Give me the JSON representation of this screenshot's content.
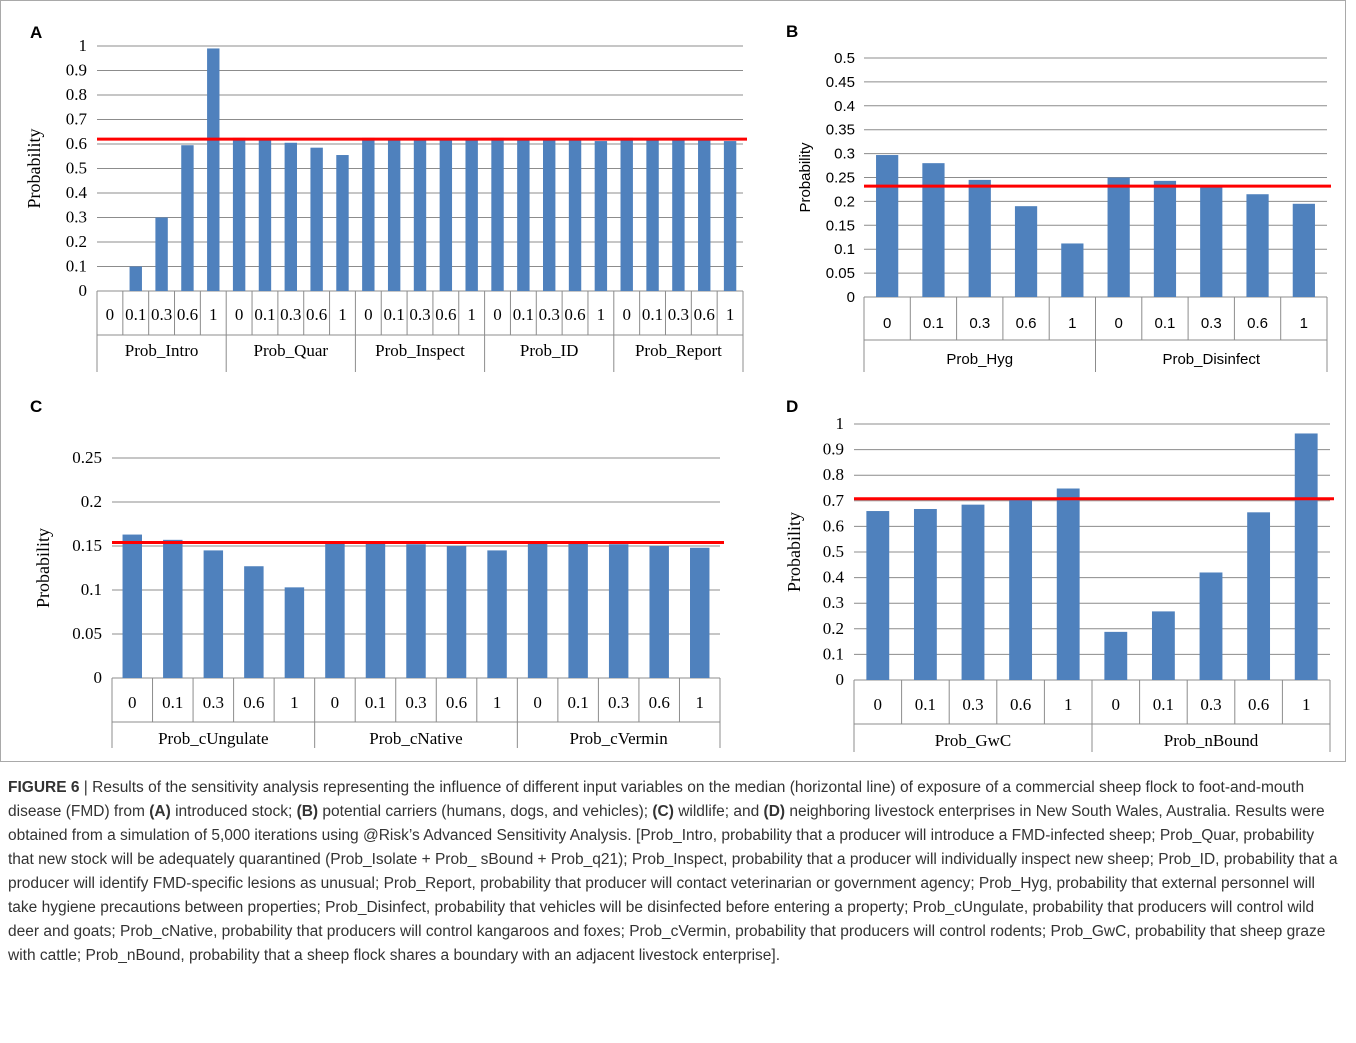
{
  "chart_data": [
    {
      "panel": "A",
      "type": "bar",
      "ylabel": "Probability",
      "ylim": [
        0,
        1
      ],
      "yticks": [
        "0",
        "0.1",
        "0.2",
        "0.3",
        "0.4",
        "0.5",
        "0.6",
        "0.7",
        "0.8",
        "0.9",
        "1"
      ],
      "groups": [
        {
          "name": "Prob_Intro",
          "categories": [
            "0",
            "0.1",
            "0.3",
            "0.6",
            "1"
          ],
          "values": [
            0,
            0.1,
            0.3,
            0.595,
            0.99
          ]
        },
        {
          "name": "Prob_Quar",
          "categories": [
            "0",
            "0.1",
            "0.3",
            "0.6",
            "1"
          ],
          "values": [
            0.625,
            0.615,
            0.605,
            0.585,
            0.555
          ]
        },
        {
          "name": "Prob_Inspect",
          "categories": [
            "0",
            "0.1",
            "0.3",
            "0.6",
            "1"
          ],
          "values": [
            0.625,
            0.62,
            0.62,
            0.617,
            0.615
          ]
        },
        {
          "name": "Prob_ID",
          "categories": [
            "0",
            "0.1",
            "0.3",
            "0.6",
            "1"
          ],
          "values": [
            0.625,
            0.62,
            0.618,
            0.615,
            0.612
          ]
        },
        {
          "name": "Prob_Report",
          "categories": [
            "0",
            "0.1",
            "0.3",
            "0.6",
            "1"
          ],
          "values": [
            0.625,
            0.62,
            0.618,
            0.615,
            0.612
          ]
        }
      ],
      "median_line": 0.62,
      "bar_color": "#4f81bd",
      "median_color": "#ff0000"
    },
    {
      "panel": "B",
      "type": "bar",
      "ylabel": "Probability",
      "ylim": [
        0,
        0.5
      ],
      "yticks": [
        "0",
        "0.05",
        "0.1",
        "0.15",
        "0.2",
        "0.25",
        "0.3",
        "0.35",
        "0.4",
        "0.45",
        "0.5"
      ],
      "groups": [
        {
          "name": "Prob_Hyg",
          "categories": [
            "0",
            "0.1",
            "0.3",
            "0.6",
            "1"
          ],
          "values": [
            0.297,
            0.28,
            0.245,
            0.19,
            0.112
          ]
        },
        {
          "name": "Prob_Disinfect",
          "categories": [
            "0",
            "0.1",
            "0.3",
            "0.6",
            "1"
          ],
          "values": [
            0.25,
            0.243,
            0.23,
            0.215,
            0.195
          ]
        }
      ],
      "median_line": 0.232,
      "bar_color": "#4f81bd",
      "median_color": "#ff0000"
    },
    {
      "panel": "C",
      "type": "bar",
      "ylabel": "Probability",
      "ylim": [
        0,
        0.25
      ],
      "yticks": [
        "0",
        "0.05",
        "0.1",
        "0.15",
        "0.2",
        "0.25"
      ],
      "groups": [
        {
          "name": "Prob_cUngulate",
          "categories": [
            "0",
            "0.1",
            "0.3",
            "0.6",
            "1"
          ],
          "values": [
            0.163,
            0.157,
            0.145,
            0.127,
            0.103
          ]
        },
        {
          "name": "Prob_cNative",
          "categories": [
            "0",
            "0.1",
            "0.3",
            "0.6",
            "1"
          ],
          "values": [
            0.155,
            0.154,
            0.152,
            0.15,
            0.145
          ]
        },
        {
          "name": "Prob_cVermin",
          "categories": [
            "0",
            "0.1",
            "0.3",
            "0.6",
            "1"
          ],
          "values": [
            0.155,
            0.154,
            0.152,
            0.15,
            0.148
          ]
        }
      ],
      "median_line": 0.154,
      "bar_color": "#4f81bd",
      "median_color": "#ff0000"
    },
    {
      "panel": "D",
      "type": "bar",
      "ylabel": "Probability",
      "ylim": [
        0,
        1
      ],
      "yticks": [
        "0",
        "0.1",
        "0.2",
        "0.3",
        "0.4",
        "0.5",
        "0.6",
        "0.7",
        "0.8",
        "0.9",
        "1"
      ],
      "groups": [
        {
          "name": "Prob_GwC",
          "categories": [
            "0",
            "0.1",
            "0.3",
            "0.6",
            "1"
          ],
          "values": [
            0.66,
            0.668,
            0.685,
            0.705,
            0.748
          ]
        },
        {
          "name": "Prob_nBound",
          "categories": [
            "0",
            "0.1",
            "0.3",
            "0.6",
            "1"
          ],
          "values": [
            0.188,
            0.268,
            0.42,
            0.655,
            0.963
          ]
        }
      ],
      "median_line": 0.708,
      "bar_color": "#4f81bd",
      "median_color": "#ff0000"
    }
  ],
  "caption": {
    "figure_label": "FIGURE 6",
    "separator": " | ",
    "t0": "Results of the sensitivity analysis representing the influence of different input variables on the median (horizontal line) of exposure of a commercial sheep flock to foot-and-mouth disease (FMD) from ",
    "b1": "(A)",
    "t1": " introduced stock; ",
    "b2": "(B)",
    "t2": " potential carriers (humans, dogs, and vehicles); ",
    "b3": "(C)",
    "t3": " wildlife; and ",
    "b4": "(D)",
    "t4": " neighboring livestock enterprises in New South Wales, Australia. Results were obtained from a simulation of 5,000 iterations using @Risk’s Advanced Sensitivity Analysis. [Prob_Intro, probability that a producer will introduce a FMD-infected sheep; Prob_Quar, probability that new stock will be adequately quarantined (Prob_Isolate + Prob_ sBound + Prob_q21); Prob_Inspect, probability that a producer will individually inspect new sheep; Prob_ID, probability that a producer will identify FMD-specific lesions as unusual; Prob_Report, probability that producer will contact veterinarian or government agency; Prob_Hyg, probability that external personnel will take hygiene precautions between properties; Prob_Disinfect, probability that vehicles will be disinfected before entering a property; Prob_cUngulate, probability that producers will control wild deer and goats; Prob_cNative, probability that producers will control kangaroos and foxes; Prob_cVermin, probability that producers will control rodents; Prob_GwC, probability that sheep graze with cattle; Prob_nBound, probability that a sheep flock shares a boundary with an adjacent livestock enterprise]."
  }
}
